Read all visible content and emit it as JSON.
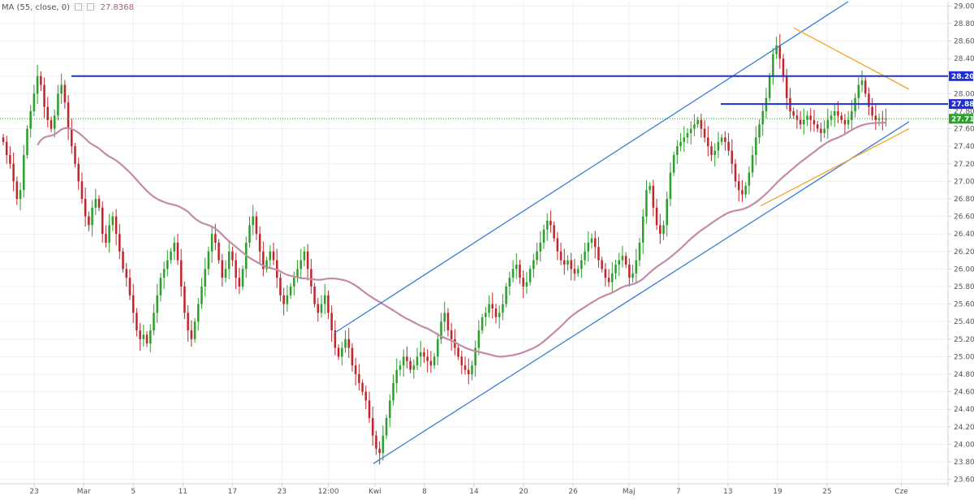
{
  "indicator": {
    "label": "MA (55, close, 0)",
    "value": "27.8368"
  },
  "colors": {
    "up": "#2ca02c",
    "down": "#c0272d",
    "ma": "#c48aa6",
    "channel": "#3b7dd8",
    "triangle": "#f5a623",
    "resistance": "#1f2fd1",
    "last_price_line": "#2ca02c"
  },
  "chart_data": {
    "type": "candlestick",
    "y_ticks": [
      "23.600",
      "23.800",
      "24.000",
      "24.200",
      "24.400",
      "24.600",
      "24.800",
      "25.000",
      "25.200",
      "25.400",
      "25.600",
      "25.800",
      "26.000",
      "26.200",
      "26.400",
      "26.600",
      "26.800",
      "27.000",
      "27.200",
      "27.400",
      "27.600",
      "27.800",
      "28.000",
      "28.200",
      "28.400",
      "28.600",
      "28.800",
      "29.000"
    ],
    "ylim": [
      23.55,
      29.05
    ],
    "x_ticks": [
      {
        "label": "23",
        "i": 10
      },
      {
        "label": "Mar",
        "i": 26
      },
      {
        "label": "5",
        "i": 42
      },
      {
        "label": "11",
        "i": 58
      },
      {
        "label": "17",
        "i": 74
      },
      {
        "label": "23",
        "i": 90
      },
      {
        "label": "12:00",
        "i": 105
      },
      {
        "label": "Kwi",
        "i": 120
      },
      {
        "label": "8",
        "i": 136
      },
      {
        "label": "14",
        "i": 152
      },
      {
        "label": "20",
        "i": 168
      },
      {
        "label": "26",
        "i": 184
      },
      {
        "label": "Maj",
        "i": 202
      },
      {
        "label": "7",
        "i": 218
      },
      {
        "label": "13",
        "i": 234
      },
      {
        "label": "19",
        "i": 250
      },
      {
        "label": "25",
        "i": 266
      },
      {
        "label": "Cze",
        "i": 290
      }
    ],
    "x_count": 305,
    "closes": [
      27.45,
      27.3,
      27.2,
      27.0,
      26.8,
      26.9,
      27.3,
      27.6,
      27.8,
      28.0,
      28.2,
      28.1,
      27.85,
      27.7,
      27.6,
      27.75,
      28.0,
      28.1,
      27.9,
      27.6,
      27.4,
      27.2,
      27.0,
      26.8,
      26.6,
      26.5,
      26.7,
      26.8,
      26.7,
      26.4,
      26.3,
      26.5,
      26.6,
      26.4,
      26.2,
      26.0,
      25.9,
      25.7,
      25.5,
      25.3,
      25.2,
      25.25,
      25.15,
      25.3,
      25.5,
      25.7,
      25.9,
      26.0,
      26.1,
      26.2,
      26.3,
      26.1,
      25.8,
      25.5,
      25.3,
      25.2,
      25.4,
      25.6,
      25.8,
      26.0,
      26.2,
      26.4,
      26.3,
      26.1,
      25.9,
      26.0,
      26.2,
      26.1,
      25.9,
      25.8,
      26.0,
      26.3,
      26.5,
      26.6,
      26.4,
      26.2,
      26.0,
      26.1,
      26.2,
      26.1,
      25.9,
      25.7,
      25.6,
      25.7,
      25.8,
      25.9,
      26.0,
      26.1,
      26.2,
      26.0,
      25.8,
      25.6,
      25.5,
      25.6,
      25.7,
      25.5,
      25.3,
      25.1,
      25.0,
      25.1,
      25.2,
      25.1,
      24.9,
      24.8,
      24.7,
      24.6,
      24.5,
      24.3,
      24.1,
      23.95,
      23.9,
      24.1,
      24.3,
      24.5,
      24.7,
      24.85,
      24.9,
      25.0,
      24.95,
      24.85,
      24.9,
      25.0,
      25.05,
      25.0,
      24.95,
      24.9,
      25.0,
      25.2,
      25.4,
      25.5,
      25.3,
      25.2,
      25.1,
      25.0,
      24.9,
      24.85,
      24.8,
      24.9,
      25.1,
      25.3,
      25.45,
      25.5,
      25.6,
      25.55,
      25.45,
      25.5,
      25.6,
      25.8,
      25.9,
      26.0,
      26.05,
      25.9,
      25.8,
      25.85,
      26.0,
      26.1,
      26.2,
      26.3,
      26.45,
      26.55,
      26.5,
      26.35,
      26.2,
      26.1,
      26.05,
      26.1,
      26.0,
      25.95,
      26.0,
      26.1,
      26.2,
      26.3,
      26.35,
      26.25,
      26.1,
      26.0,
      25.9,
      25.85,
      25.95,
      26.05,
      26.1,
      26.15,
      26.05,
      25.9,
      25.95,
      26.1,
      26.3,
      26.6,
      26.9,
      26.95,
      26.7,
      26.5,
      26.4,
      26.5,
      26.8,
      27.1,
      27.3,
      27.4,
      27.45,
      27.5,
      27.55,
      27.6,
      27.65,
      27.7,
      27.6,
      27.5,
      27.4,
      27.3,
      27.35,
      27.45,
      27.5,
      27.45,
      27.35,
      27.2,
      27.0,
      26.9,
      26.85,
      26.95,
      27.1,
      27.3,
      27.5,
      27.65,
      27.8,
      27.95,
      28.2,
      28.45,
      28.55,
      28.4,
      28.2,
      27.95,
      27.8,
      27.75,
      27.7,
      27.65,
      27.7,
      27.75,
      27.7,
      27.65,
      27.6,
      27.55,
      27.6,
      27.7,
      27.75,
      27.8,
      27.75,
      27.7,
      27.65,
      27.7,
      27.8,
      27.95,
      28.1,
      28.15,
      28.0,
      27.85,
      27.75,
      27.7,
      27.72,
      27.71,
      27.714
    ],
    "ma55_value": 27.8368,
    "ma55_label": "MA (55, close, 0)",
    "horizontal_levels": [
      {
        "label": "28.200",
        "value": 28.2,
        "color": "resistance"
      },
      {
        "label": "27.882",
        "value": 27.882,
        "color": "resistance"
      },
      {
        "label": "27.714",
        "value": 27.714,
        "color": "last_price_line"
      }
    ]
  }
}
